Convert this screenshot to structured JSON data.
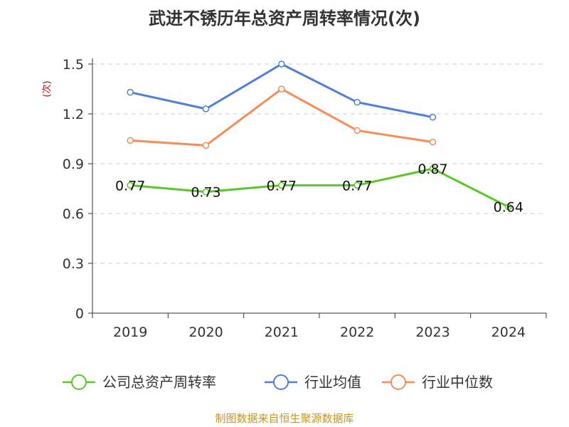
{
  "chart_data": {
    "type": "line",
    "title": "武进不锈历年总资产周转率情况(次)",
    "ylabel": "(次)",
    "categories": [
      "2019",
      "2020",
      "2021",
      "2022",
      "2023",
      "2024"
    ],
    "ylim": [
      0,
      1.5
    ],
    "yticks": [
      "0",
      "0.3",
      "0.6",
      "0.9",
      "1.2",
      "1.5"
    ],
    "grid": true,
    "legend_position": "bottom",
    "series": [
      {
        "name": "公司总资产周转率",
        "color": "#5bc625",
        "values": [
          0.77,
          0.73,
          0.77,
          0.77,
          0.87,
          0.64
        ],
        "data_labels": [
          "0.77",
          "0.73",
          "0.77",
          "0.77",
          "0.87",
          "0.64"
        ]
      },
      {
        "name": "行业均值",
        "color": "#4f7fdb",
        "values": [
          1.33,
          1.23,
          1.5,
          1.27,
          1.18,
          null
        ]
      },
      {
        "name": "行业中位数",
        "color": "#f68c58",
        "values": [
          1.04,
          1.01,
          1.35,
          1.1,
          1.03,
          null
        ]
      }
    ],
    "source": "制图数据来自恒生聚源数据库"
  }
}
